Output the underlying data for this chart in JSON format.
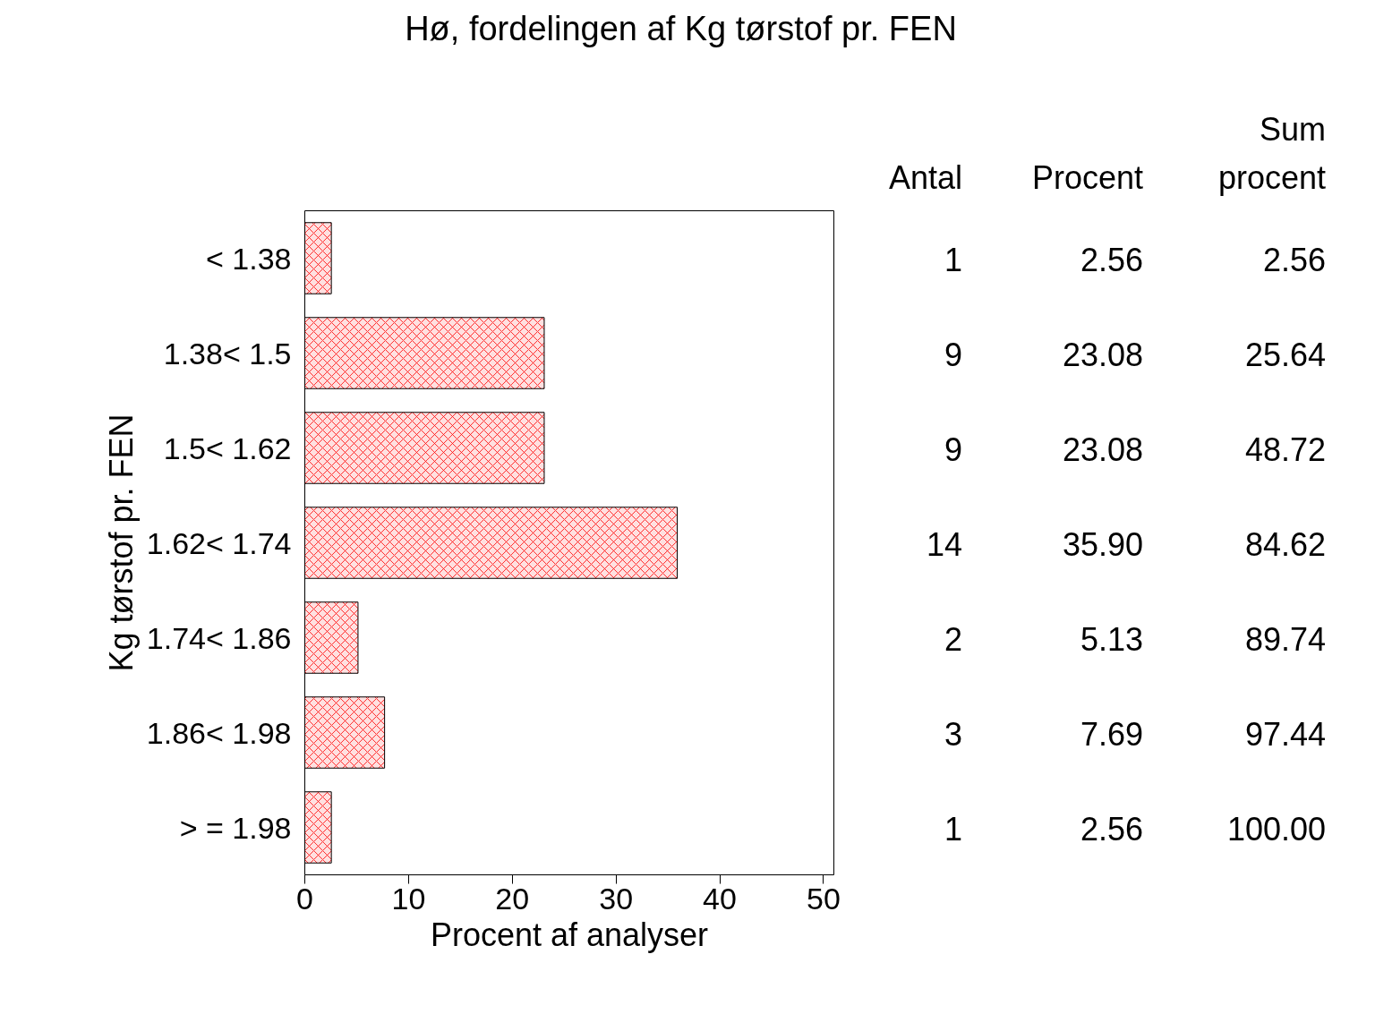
{
  "chart_data": [
    {
      "type": "bar",
      "title": "Hø, fordelingen af Kg tørstof pr. FEN",
      "orientation": "horizontal",
      "xlabel": "Procent af analyser",
      "ylabel": "Kg tørstof pr. FEN",
      "categories": [
        "< 1.38",
        "1.38< 1.5",
        "1.5< 1.62",
        "1.62< 1.74",
        "1.74< 1.86",
        "1.86< 1.98",
        "> = 1.98"
      ],
      "values": [
        2.56,
        23.08,
        23.08,
        35.9,
        5.13,
        7.69,
        2.56
      ],
      "color": "#ff0000",
      "xlim": [
        0,
        51
      ],
      "xticks": [
        0,
        10,
        20,
        30,
        40,
        50
      ],
      "grid": false
    },
    {
      "type": "other",
      "annotations": [
        "Antal",
        "Procent",
        "Sum\nprocent",
        "1",
        "2.56",
        "2.56",
        "9",
        "23.08",
        "25.64",
        "9",
        "23.08",
        "48.72",
        "14",
        "35.90",
        "84.62",
        "2",
        "5.13",
        "89.74",
        "3",
        "7.69",
        "97.44",
        "1",
        "2.56",
        "100.00"
      ]
    }
  ]
}
